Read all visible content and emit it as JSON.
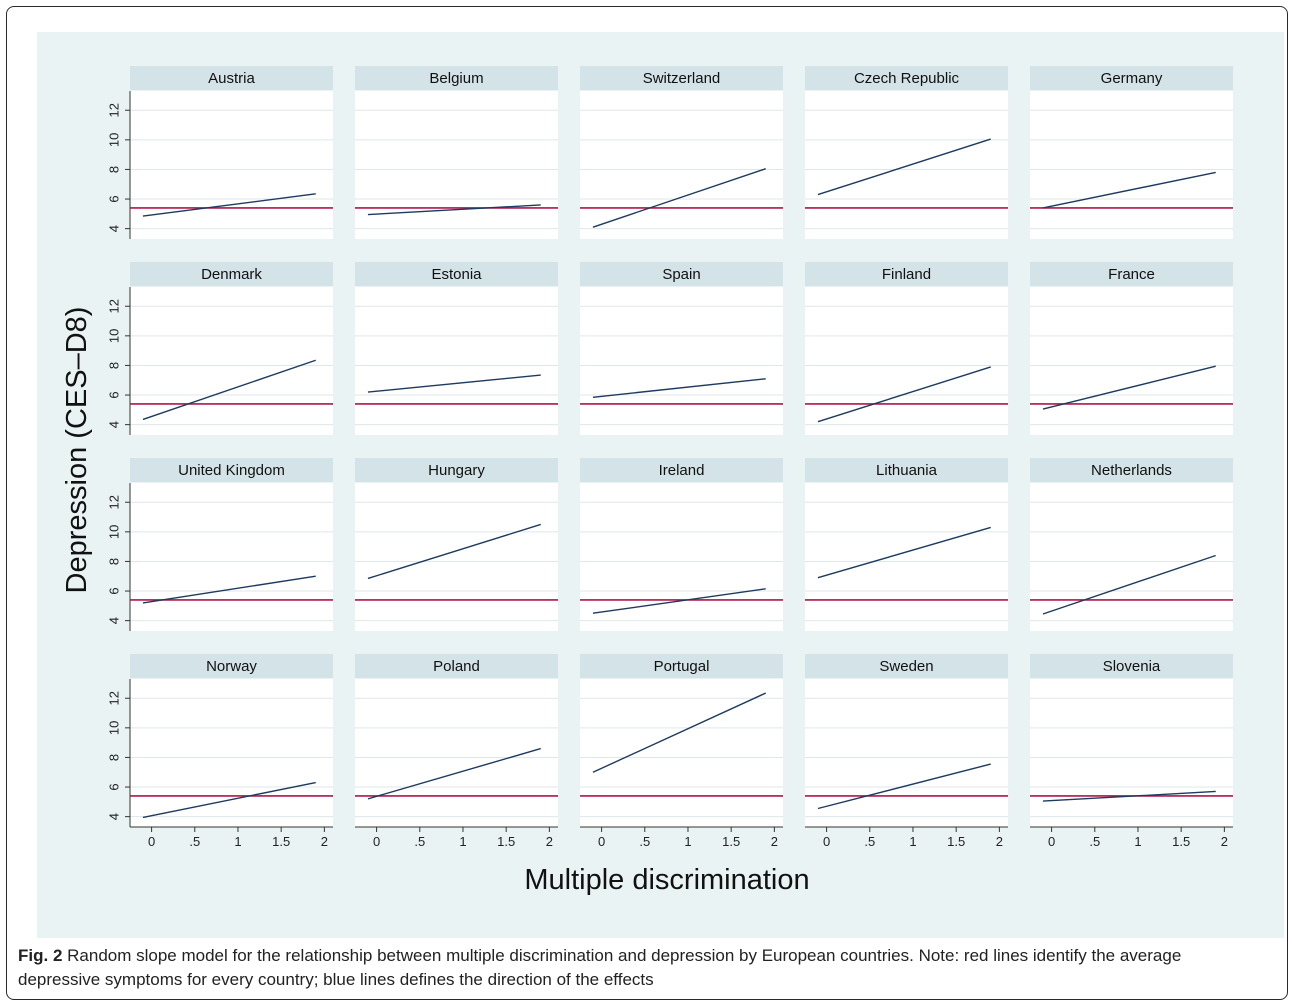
{
  "chart_data": {
    "type": "line",
    "layout": "small multiples, 4 rows x 5 columns",
    "ylabel": "Depression (CES–D8)",
    "xlabel": "Multiple discrimination",
    "xlim": [
      -0.25,
      2.1
    ],
    "ylim": [
      3.3,
      13.3
    ],
    "x_ticks": [
      0,
      0.5,
      1,
      1.5,
      2
    ],
    "x_tick_labels": [
      "0",
      ".5",
      "1",
      "1.5",
      "2"
    ],
    "y_ticks": [
      4,
      6,
      8,
      10,
      12
    ],
    "y_tick_labels": [
      "4",
      "6",
      "8",
      "10",
      "12"
    ],
    "grid": "horizontal",
    "average_line": 5.4,
    "colors": {
      "slope": "#1d3a5f",
      "average": "#b0154a",
      "strip": "#d4e3e8",
      "grid": "#dfe7ea",
      "background": "#eaf3f4"
    },
    "panels": [
      {
        "country": "Austria",
        "x": [
          -0.1,
          1.9
        ],
        "y": [
          4.85,
          6.35
        ]
      },
      {
        "country": "Belgium",
        "x": [
          -0.1,
          1.9
        ],
        "y": [
          4.95,
          5.6
        ]
      },
      {
        "country": "Switzerland",
        "x": [
          -0.1,
          1.9
        ],
        "y": [
          4.1,
          8.05
        ]
      },
      {
        "country": "Czech Republic",
        "x": [
          -0.1,
          1.9
        ],
        "y": [
          6.3,
          10.05
        ]
      },
      {
        "country": "Germany",
        "x": [
          -0.1,
          1.9
        ],
        "y": [
          5.4,
          7.8
        ]
      },
      {
        "country": "Denmark",
        "x": [
          -0.1,
          1.9
        ],
        "y": [
          4.35,
          8.35
        ]
      },
      {
        "country": "Estonia",
        "x": [
          -0.1,
          1.9
        ],
        "y": [
          6.2,
          7.35
        ]
      },
      {
        "country": "Spain",
        "x": [
          -0.1,
          1.9
        ],
        "y": [
          5.85,
          7.1
        ]
      },
      {
        "country": "Finland",
        "x": [
          -0.1,
          1.9
        ],
        "y": [
          4.2,
          7.9
        ]
      },
      {
        "country": "France",
        "x": [
          -0.1,
          1.9
        ],
        "y": [
          5.05,
          7.95
        ]
      },
      {
        "country": "United Kingdom",
        "x": [
          -0.1,
          1.9
        ],
        "y": [
          5.2,
          7.0
        ]
      },
      {
        "country": "Hungary",
        "x": [
          -0.1,
          1.9
        ],
        "y": [
          6.85,
          10.5
        ]
      },
      {
        "country": "Ireland",
        "x": [
          -0.1,
          1.9
        ],
        "y": [
          4.5,
          6.15
        ]
      },
      {
        "country": "Lithuania",
        "x": [
          -0.1,
          1.9
        ],
        "y": [
          6.9,
          10.3
        ]
      },
      {
        "country": "Netherlands",
        "x": [
          -0.1,
          1.9
        ],
        "y": [
          4.45,
          8.4
        ]
      },
      {
        "country": "Norway",
        "x": [
          -0.1,
          1.9
        ],
        "y": [
          3.95,
          6.3
        ]
      },
      {
        "country": "Poland",
        "x": [
          -0.1,
          1.9
        ],
        "y": [
          5.2,
          8.6
        ]
      },
      {
        "country": "Portugal",
        "x": [
          -0.1,
          1.9
        ],
        "y": [
          7.0,
          12.35
        ]
      },
      {
        "country": "Sweden",
        "x": [
          -0.1,
          1.9
        ],
        "y": [
          4.55,
          7.55
        ]
      },
      {
        "country": "Slovenia",
        "x": [
          -0.1,
          1.9
        ],
        "y": [
          5.05,
          5.7
        ]
      }
    ]
  },
  "caption": {
    "label": "Fig. 2",
    "text": "Random slope model for the relationship between multiple discrimination and depression by European countries. Note: red lines identify the average depressive symptoms for every country; blue lines defines the direction of the effects"
  }
}
